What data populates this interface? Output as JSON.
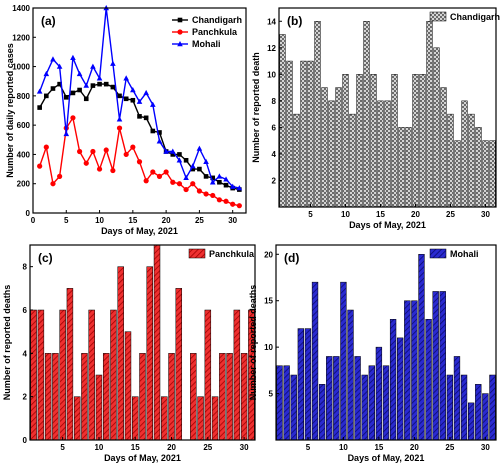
{
  "chart_data": [
    {
      "panel": "(a)",
      "type": "line",
      "xlabel": "Days of May, 2021",
      "ylabel": "Number of daily reported cases",
      "xlim": [
        0,
        32
      ],
      "ylim": [
        0,
        1400
      ],
      "xticks": [
        0,
        5,
        10,
        15,
        20,
        25,
        30
      ],
      "yticks": [
        0,
        200,
        400,
        600,
        800,
        1000,
        1200,
        1400
      ],
      "legend_position": "top-right",
      "x": [
        1,
        2,
        3,
        4,
        5,
        6,
        7,
        8,
        9,
        10,
        11,
        12,
        13,
        14,
        15,
        16,
        17,
        18,
        19,
        20,
        21,
        22,
        23,
        24,
        25,
        26,
        27,
        28,
        29,
        30,
        31
      ],
      "series": [
        {
          "name": "Chandigarh",
          "color": "#000000",
          "marker": "square",
          "values": [
            720,
            800,
            850,
            880,
            790,
            820,
            840,
            780,
            870,
            880,
            880,
            860,
            800,
            780,
            770,
            660,
            650,
            560,
            550,
            420,
            400,
            400,
            360,
            300,
            300,
            250,
            240,
            210,
            190,
            170,
            160
          ]
        },
        {
          "name": "Panchkula",
          "color": "#ff0000",
          "marker": "circle",
          "values": [
            320,
            450,
            200,
            250,
            580,
            650,
            420,
            340,
            420,
            300,
            430,
            290,
            580,
            400,
            450,
            350,
            220,
            280,
            250,
            280,
            210,
            200,
            160,
            200,
            150,
            130,
            120,
            90,
            80,
            60,
            50
          ]
        },
        {
          "name": "Mohali",
          "color": "#0000ff",
          "marker": "triangle",
          "values": [
            830,
            950,
            1050,
            1000,
            540,
            1060,
            950,
            870,
            1000,
            920,
            1400,
            1020,
            640,
            920,
            840,
            760,
            820,
            740,
            490,
            420,
            420,
            360,
            240,
            320,
            440,
            350,
            210,
            250,
            230,
            180,
            170
          ]
        }
      ]
    },
    {
      "panel": "(b)",
      "type": "bar",
      "xlabel": "Days of May, 2021",
      "ylabel": "Number of reported death",
      "xlim": [
        0.5,
        31.5
      ],
      "ylim": [
        0,
        15
      ],
      "xticks": [
        5,
        10,
        15,
        20,
        25,
        30
      ],
      "yticks": [
        2,
        4,
        6,
        8,
        10,
        12,
        14
      ],
      "legend_position": "top-right",
      "series": [
        {
          "name": "Chandigarh",
          "color": "#9a9a9a",
          "pattern": "checker",
          "values": [
            13,
            11,
            7,
            11,
            11,
            14,
            9,
            8,
            9,
            10,
            7,
            10,
            14,
            10,
            8,
            8,
            10,
            6,
            6,
            10,
            10,
            14,
            12,
            9,
            7,
            5,
            8,
            7,
            6,
            5,
            5
          ]
        }
      ]
    },
    {
      "panel": "(c)",
      "type": "bar",
      "xlabel": "Days of May, 2021",
      "ylabel": "Number of reported deaths",
      "xlim": [
        0.5,
        31.5
      ],
      "ylim": [
        0,
        9
      ],
      "xticks": [
        5,
        10,
        15,
        20,
        25,
        30
      ],
      "yticks": [
        0,
        2,
        4,
        6,
        8
      ],
      "legend_position": "top-right",
      "series": [
        {
          "name": "Panchkula",
          "color": "#dd1111",
          "pattern": "hatch",
          "values": [
            6,
            6,
            4,
            4,
            6,
            7,
            2,
            4,
            6,
            3,
            4,
            6,
            8,
            5,
            2,
            4,
            8,
            9,
            2,
            4,
            7,
            0,
            4,
            2,
            6,
            2,
            4,
            4,
            6,
            4,
            6
          ]
        }
      ]
    },
    {
      "panel": "(d)",
      "type": "bar",
      "xlabel": "Days of May, 2021",
      "ylabel": "Number of reported deaths",
      "xlim": [
        0.5,
        31.5
      ],
      "ylim": [
        0,
        21
      ],
      "xticks": [
        5,
        10,
        15,
        20,
        25,
        30
      ],
      "yticks": [
        5,
        10,
        15,
        20
      ],
      "legend_position": "top-right",
      "series": [
        {
          "name": "Mohali",
          "color": "#1a1aa6",
          "pattern": "hatch",
          "values": [
            8,
            8,
            7,
            12,
            12,
            17,
            6,
            9,
            9,
            17,
            14,
            9,
            7,
            8,
            10,
            8,
            13,
            11,
            15,
            15,
            20,
            13,
            16,
            16,
            7,
            9,
            7,
            4,
            6,
            5,
            7
          ]
        }
      ]
    }
  ]
}
